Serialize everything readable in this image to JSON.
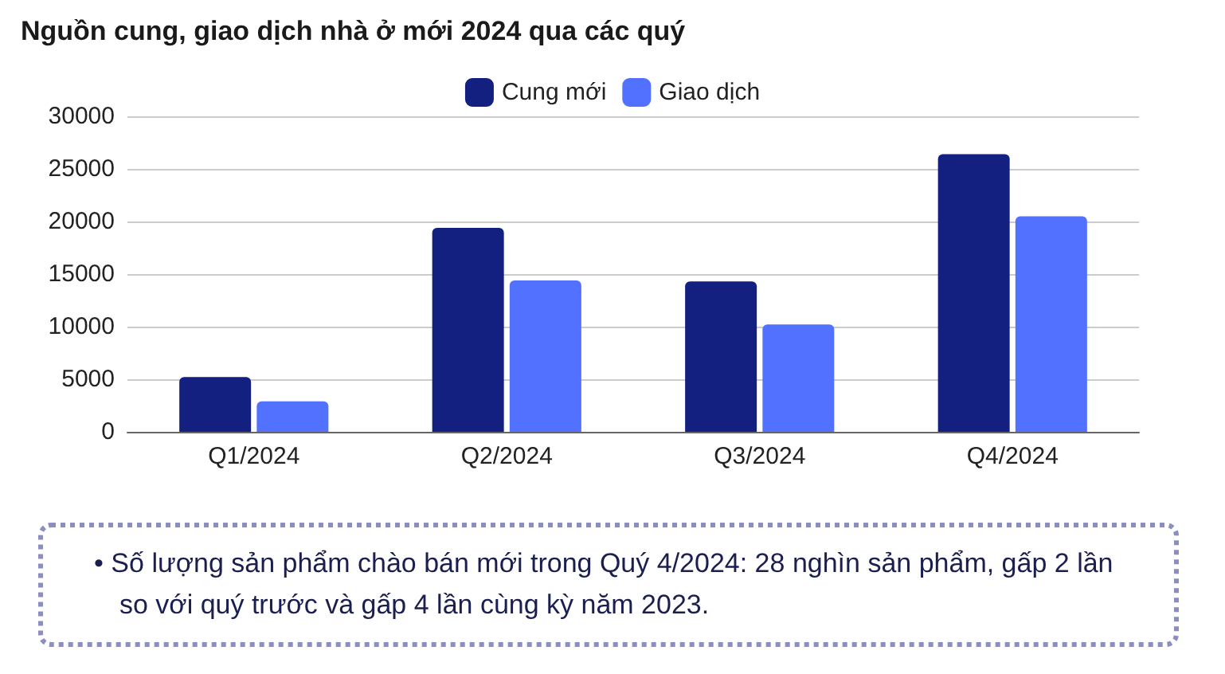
{
  "chart_data": {
    "type": "bar",
    "title": "Nguồn cung, giao dịch nhà ở mới 2024 qua các quý",
    "categories": [
      "Q1/2024",
      "Q2/2024",
      "Q3/2024",
      "Q4/2024"
    ],
    "series": [
      {
        "name": "Cung mới",
        "color": "#14207f",
        "values": [
          5200,
          19400,
          14300,
          26400
        ]
      },
      {
        "name": "Giao dịch",
        "color": "#5271ff",
        "values": [
          2900,
          14400,
          10200,
          20500
        ]
      }
    ],
    "ylim": [
      0,
      30000
    ],
    "yticks": [
      0,
      5000,
      10000,
      15000,
      20000,
      25000,
      30000
    ],
    "grid": "y",
    "legend": "top",
    "annotations": [
      "• Số lượng sản phẩm chào bán mới trong Quý 4/2024: 28 nghìn sản phẩm, gấp 2 lần so với quý trước và gấp 4 lần cùng kỳ năm 2023."
    ]
  }
}
